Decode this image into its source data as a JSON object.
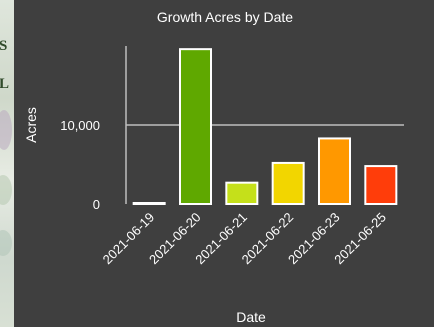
{
  "chart_data": {
    "type": "bar",
    "title": "Growth Acres by Date",
    "xlabel": "Date",
    "ylabel": "Acres",
    "categories": [
      "2021-06-19",
      "2021-06-20",
      "2021-06-21",
      "2021-06-22",
      "2021-06-23",
      "2021-06-25"
    ],
    "values": [
      100,
      19600,
      2700,
      5200,
      8300,
      4800
    ],
    "colors": [
      "#2e2e2e",
      "#5fa800",
      "#c5e01a",
      "#f2d600",
      "#ff9800",
      "#ff3d0a"
    ],
    "bar_outline": "#ffffff",
    "yticks": [
      0,
      10000
    ],
    "ytick_labels": [
      "0",
      "10,000"
    ],
    "ylim": [
      0,
      20000
    ],
    "grid": true,
    "legend": "none"
  },
  "map_labels": [
    "S",
    "L"
  ]
}
